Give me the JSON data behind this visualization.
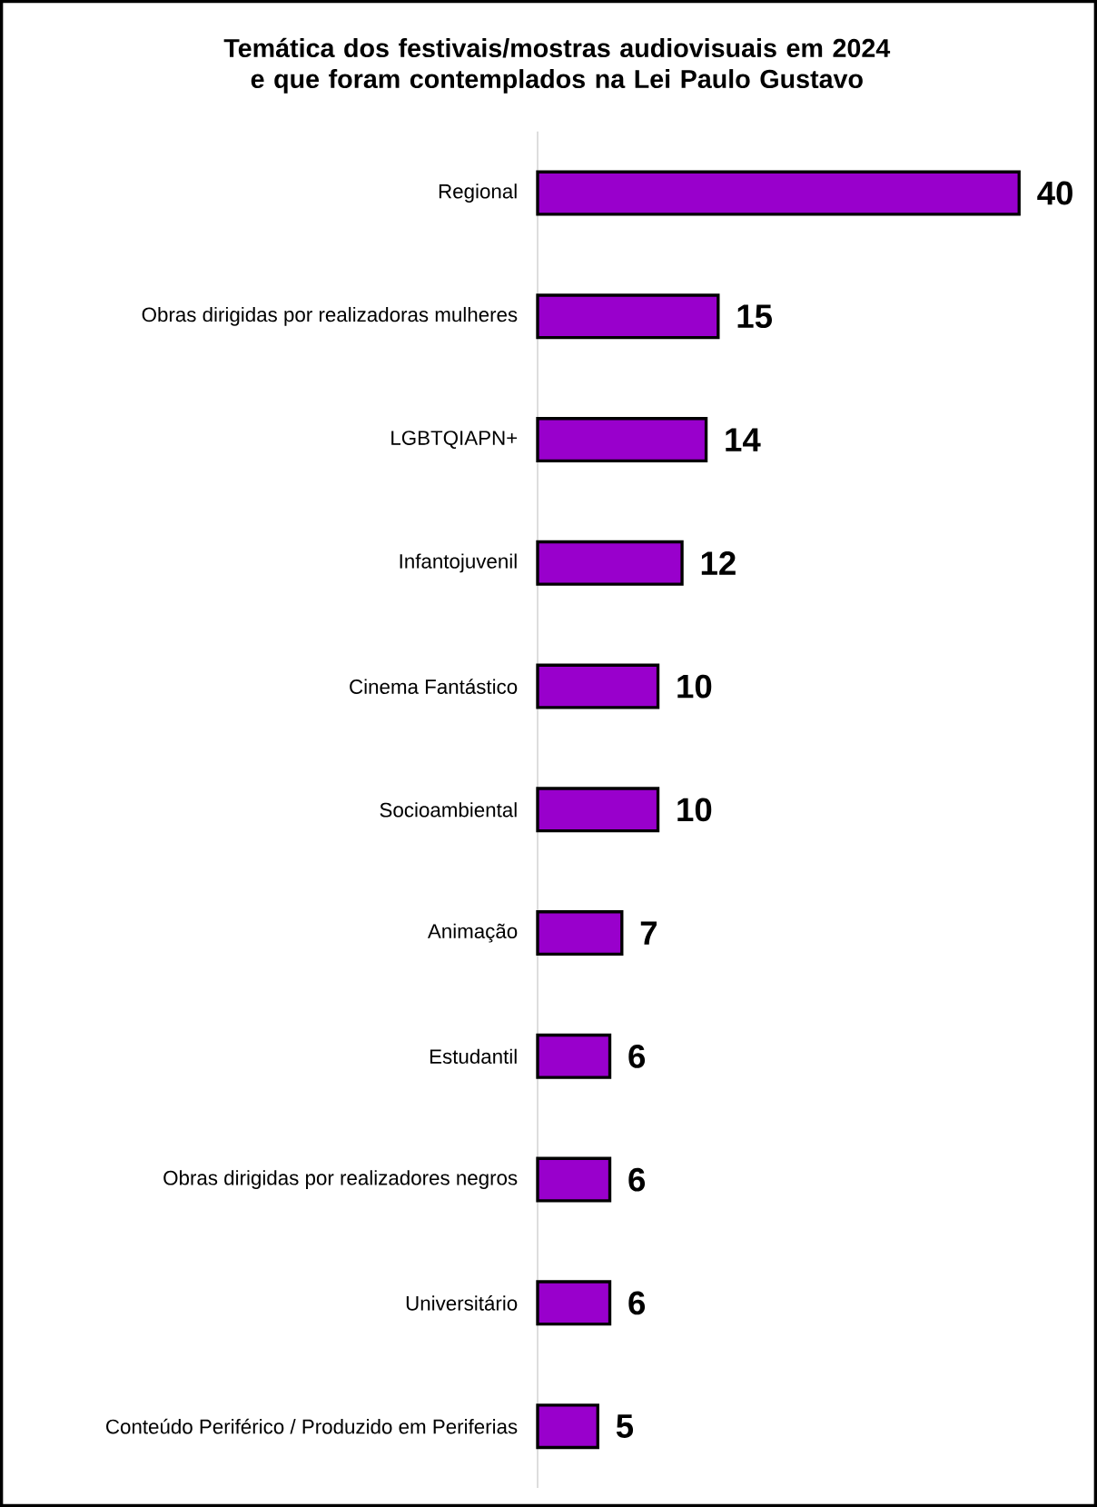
{
  "chart_data": {
    "type": "bar",
    "orientation": "horizontal",
    "title": "Temática dos festivais/mostras audiovisuais em 2024 e que foram contemplados na Lei Paulo Gustavo",
    "categories": [
      "Regional",
      "Obras dirigidas por realizadoras mulheres",
      "LGBTQIAPN+",
      "Infantojuvenil",
      "Cinema Fantástico",
      "Socioambiental",
      "Animação",
      "Estudantil",
      "Obras dirigidas por realizadores negros",
      "Universitário",
      "Conteúdo Periférico / Produzido em Periferias"
    ],
    "values": [
      40,
      15,
      14,
      12,
      10,
      10,
      7,
      6,
      6,
      6,
      5
    ],
    "color": "#9900cc",
    "data_labels": true
  }
}
